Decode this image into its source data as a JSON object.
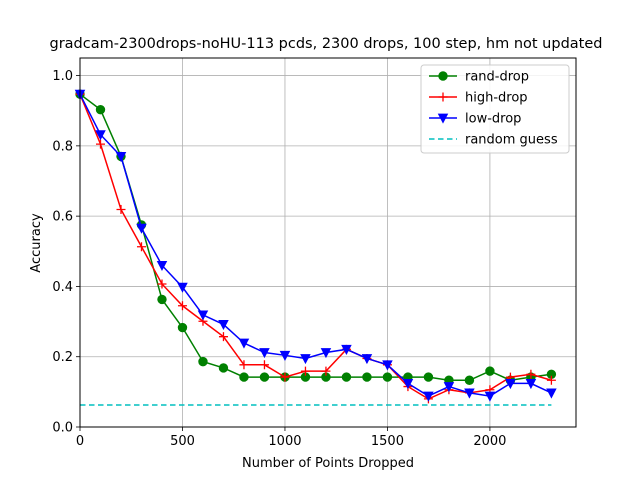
{
  "chart_data": {
    "type": "line",
    "title": "gradcam-2300drops-noHU-113 pcds, 2300 drops, 100 step, hm not updated",
    "xlabel": "Number of Points Dropped",
    "ylabel": "Accuracy",
    "xlim": [
      0,
      2420
    ],
    "ylim": [
      0,
      1.05
    ],
    "xticks": [
      0,
      500,
      1000,
      1500,
      2000
    ],
    "yticks": [
      0.0,
      0.2,
      0.4,
      0.6,
      0.8,
      1.0
    ],
    "xtick_labels": [
      "0",
      "500",
      "1000",
      "1500",
      "2000"
    ],
    "ytick_labels": [
      "0.0",
      "0.2",
      "0.4",
      "0.6",
      "0.8",
      "1.0"
    ],
    "grid": true,
    "legend_position": "top-right",
    "x": [
      0,
      100,
      200,
      300,
      400,
      500,
      600,
      700,
      800,
      900,
      1000,
      1100,
      1200,
      1300,
      1400,
      1500,
      1600,
      1700,
      1800,
      1900,
      2000,
      2100,
      2200,
      2300
    ],
    "series": [
      {
        "name": "rand-drop",
        "color": "#008000",
        "marker": "circle",
        "values": [
          0.947,
          0.903,
          0.77,
          0.575,
          0.363,
          0.283,
          0.186,
          0.168,
          0.142,
          0.142,
          0.142,
          0.142,
          0.142,
          0.142,
          0.142,
          0.142,
          0.142,
          0.142,
          0.133,
          0.133,
          0.159,
          0.133,
          0.142,
          0.15
        ]
      },
      {
        "name": "high-drop",
        "color": "#ff0000",
        "marker": "plus",
        "values": [
          0.947,
          0.805,
          0.619,
          0.513,
          0.407,
          0.345,
          0.301,
          0.257,
          0.177,
          0.177,
          0.142,
          0.159,
          0.159,
          0.221,
          0.195,
          0.177,
          0.115,
          0.08,
          0.106,
          0.097,
          0.106,
          0.142,
          0.15,
          0.133
        ]
      },
      {
        "name": "low-drop",
        "color": "#0000ff",
        "marker": "triangle-down",
        "values": [
          0.947,
          0.832,
          0.77,
          0.566,
          0.46,
          0.398,
          0.319,
          0.292,
          0.239,
          0.212,
          0.204,
          0.195,
          0.212,
          0.221,
          0.195,
          0.177,
          0.124,
          0.088,
          0.115,
          0.097,
          0.088,
          0.124,
          0.124,
          0.097
        ]
      },
      {
        "name": "random guess",
        "color": "#00bfbf",
        "marker": "none",
        "dashed": true,
        "values": [
          0.0625,
          0.0625,
          0.0625,
          0.0625,
          0.0625,
          0.0625,
          0.0625,
          0.0625,
          0.0625,
          0.0625,
          0.0625,
          0.0625,
          0.0625,
          0.0625,
          0.0625,
          0.0625,
          0.0625,
          0.0625,
          0.0625,
          0.0625,
          0.0625,
          0.0625,
          0.0625,
          0.0625
        ]
      }
    ]
  }
}
